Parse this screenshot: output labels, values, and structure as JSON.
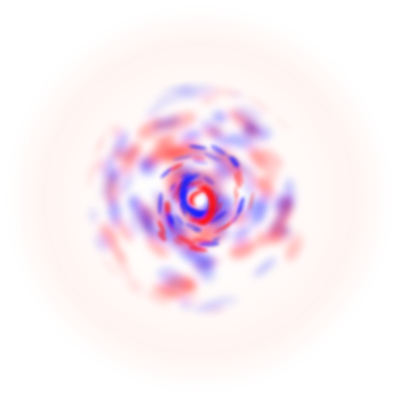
{
  "image": {
    "subject": "vorticity-field",
    "colors": {
      "background": "#ffffff",
      "positive": "#ff0000",
      "negative": "#0000ff",
      "faint_halo": "#fff6f3"
    }
  }
}
